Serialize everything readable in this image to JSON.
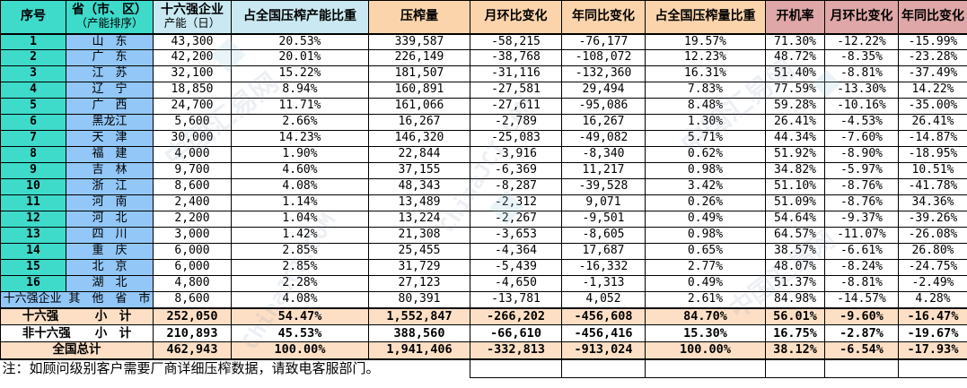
{
  "colors": {
    "header_teal": "#3EDACA",
    "header_light_blue": "#C9E8F1",
    "header_peach": "#FBD4AC",
    "header_rose": "#DFA7A7",
    "rank_cell_teal": "#3EDACA",
    "province_cell_blue": "#92C7F7",
    "subtotal_peach": "#FCDFC5",
    "grid_line": "#000000"
  },
  "watermark": {
    "texts": [
      "中国汇易网",
      "ChinaJCI.COM"
    ],
    "diamond": "◆"
  },
  "chart_data": {
    "type": "table",
    "columns": [
      {
        "line1": "序号",
        "group": "teal"
      },
      {
        "line1": "省（市、区）",
        "line2": "（产能排序）",
        "group": "teal"
      },
      {
        "line1": "十六强企业",
        "line2": "产能（日）",
        "group": "blue"
      },
      {
        "line1": "占全国压榨产能比重",
        "group": "blue"
      },
      {
        "line1": "压榨量",
        "group": "peach"
      },
      {
        "line1": "月环比变化",
        "group": "peach"
      },
      {
        "line1": "年同比变化",
        "group": "peach"
      },
      {
        "line1": "占全国压榨量比重",
        "group": "peach"
      },
      {
        "line1": "开机率",
        "group": "rose"
      },
      {
        "line1": "月环比变化",
        "group": "rose"
      },
      {
        "line1": "年同比变化",
        "group": "rose"
      }
    ],
    "rows": [
      [
        "1",
        "山　东",
        "43,300",
        "20.53%",
        "339,587",
        "-58,215",
        "-76,177",
        "19.57%",
        "71.30%",
        "-12.22%",
        "-15.99%"
      ],
      [
        "2",
        "广　东",
        "42,200",
        "20.01%",
        "226,149",
        "-38,768",
        "-108,072",
        "12.23%",
        "48.72%",
        "-8.35%",
        "-23.28%"
      ],
      [
        "3",
        "江　苏",
        "32,100",
        "15.22%",
        "181,507",
        "-31,116",
        "-132,360",
        "16.31%",
        "51.40%",
        "-8.81%",
        "-37.49%"
      ],
      [
        "4",
        "辽　宁",
        "18,850",
        "8.94%",
        "160,891",
        "-27,581",
        "29,494",
        "7.83%",
        "77.59%",
        "-13.30%",
        "14.22%"
      ],
      [
        "5",
        "广　西",
        "24,700",
        "11.71%",
        "161,066",
        "-27,611",
        "-95,086",
        "8.48%",
        "59.28%",
        "-10.16%",
        "-35.00%"
      ],
      [
        "6",
        "黑龙江",
        "5,600",
        "2.66%",
        "16,267",
        "-2,789",
        "16,267",
        "1.30%",
        "26.41%",
        "-4.53%",
        "26.41%"
      ],
      [
        "7",
        "天　津",
        "30,000",
        "14.23%",
        "146,320",
        "-25,083",
        "-49,082",
        "5.71%",
        "44.34%",
        "-7.60%",
        "-14.87%"
      ],
      [
        "8",
        "福　建",
        "4,000",
        "1.90%",
        "22,844",
        "-3,916",
        "-8,340",
        "0.62%",
        "51.92%",
        "-8.90%",
        "-18.95%"
      ],
      [
        "9",
        "吉　林",
        "9,700",
        "4.60%",
        "37,155",
        "-6,369",
        "11,217",
        "0.98%",
        "34.82%",
        "-5.97%",
        "10.51%"
      ],
      [
        "10",
        "浙　江",
        "8,600",
        "4.08%",
        "48,343",
        "-8,287",
        "-39,528",
        "3.42%",
        "51.10%",
        "-8.76%",
        "-41.78%"
      ],
      [
        "11",
        "河　南",
        "2,400",
        "1.14%",
        "13,489",
        "-2,312",
        "9,071",
        "0.26%",
        "51.09%",
        "-8.76%",
        "34.36%"
      ],
      [
        "12",
        "河　北",
        "2,200",
        "1.04%",
        "13,224",
        "-2,267",
        "-9,501",
        "0.49%",
        "54.64%",
        "-9.37%",
        "-39.26%"
      ],
      [
        "13",
        "四　川",
        "3,000",
        "1.42%",
        "21,308",
        "-3,653",
        "-8,605",
        "0.98%",
        "64.57%",
        "-11.07%",
        "-26.08%"
      ],
      [
        "14",
        "重　庆",
        "6,000",
        "2.85%",
        "25,455",
        "-4,364",
        "17,687",
        "0.65%",
        "38.57%",
        "-6.61%",
        "26.80%"
      ],
      [
        "15",
        "北　京",
        "6,000",
        "2.85%",
        "31,729",
        "-5,439",
        "-16,332",
        "2.77%",
        "48.07%",
        "-8.24%",
        "-24.75%"
      ],
      [
        "16",
        "湖　北",
        "4,800",
        "2.28%",
        "27,123",
        "-4,650",
        "-1,313",
        "0.49%",
        "51.37%",
        "-8.81%",
        "-2.49%"
      ]
    ],
    "other_row": {
      "label": "十六强企业 其　他　省　市",
      "values": [
        "8,600",
        "4.08%",
        "80,391",
        "-13,781",
        "4,052",
        "2.61%",
        "84.98%",
        "-14.57%",
        "4.28%"
      ]
    },
    "totals": [
      {
        "label": "十六强　　　小　计",
        "highlight": true,
        "values": [
          "252,050",
          "54.47%",
          "1,552,847",
          "-266,202",
          "-456,608",
          "84.70%",
          "56.01%",
          "-9.60%",
          "-16.47%"
        ]
      },
      {
        "label": "非十六强　　小　计",
        "highlight": false,
        "values": [
          "210,893",
          "45.53%",
          "388,560",
          "-66,610",
          "-456,416",
          "15.30%",
          "16.75%",
          "-2.87%",
          "-19.67%"
        ]
      },
      {
        "label": "全国总计",
        "highlight": true,
        "values": [
          "462,943",
          "100.00%",
          "1,941,406",
          "-332,813",
          "-913,024",
          "100.00%",
          "38.12%",
          "-6.54%",
          "-17.93%"
        ]
      }
    ],
    "note": "注：如顾问级别客户需要厂商详细压榨数据，请致电客服部门。"
  }
}
